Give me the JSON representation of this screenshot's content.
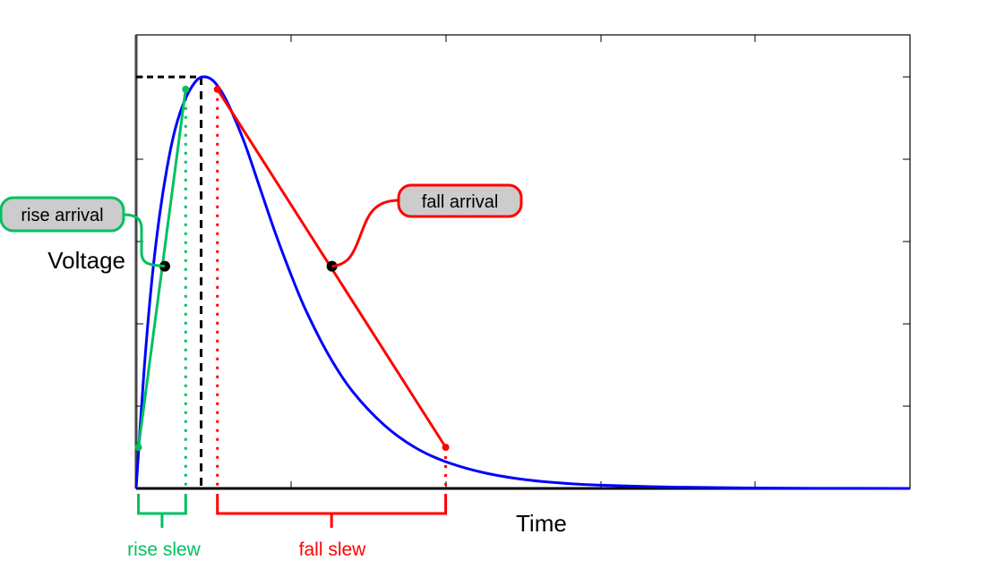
{
  "chart_data": {
    "type": "line",
    "title": "",
    "xlabel": "Time",
    "ylabel": "Voltage",
    "grid": false,
    "xlim": [
      0,
      10
    ],
    "ylim": [
      0,
      1
    ],
    "series": [
      {
        "color": "#0000ff",
        "x": [
          0.0,
          0.1,
          0.2,
          0.3,
          0.4,
          0.5,
          0.6,
          0.7,
          0.8,
          0.9,
          1.0,
          1.1,
          1.2,
          1.4,
          1.6,
          1.8,
          2.0,
          2.2,
          2.5,
          2.8,
          3.2,
          3.6,
          4.0,
          4.5,
          5.0,
          5.5,
          6.0,
          7.0,
          8.0,
          9.0,
          10.0
        ],
        "y": [
          0.0,
          0.28,
          0.5,
          0.66,
          0.78,
          0.87,
          0.93,
          0.97,
          0.995,
          1.0,
          0.99,
          0.965,
          0.93,
          0.84,
          0.73,
          0.62,
          0.52,
          0.43,
          0.32,
          0.235,
          0.155,
          0.1,
          0.065,
          0.038,
          0.022,
          0.013,
          0.008,
          0.003,
          0.001,
          0.0003,
          0.0
        ]
      }
    ],
    "annotations": {
      "peak": {
        "x": 0.84,
        "y": 1.0
      },
      "rise": {
        "start": {
          "x": 0.03,
          "y": 0.1
        },
        "end": {
          "x": 0.64,
          "y": 0.97
        },
        "arrival": {
          "x": 0.37,
          "y": 0.54
        },
        "color": "#00c060",
        "label": "rise arrival",
        "slew_label": "rise slew"
      },
      "fall": {
        "start": {
          "x": 1.05,
          "y": 0.97
        },
        "end": {
          "x": 4.0,
          "y": 0.1
        },
        "arrival": {
          "x": 2.53,
          "y": 0.54
        },
        "color": "#ff0000",
        "label": "fall arrival",
        "slew_label": "fall slew"
      }
    }
  }
}
